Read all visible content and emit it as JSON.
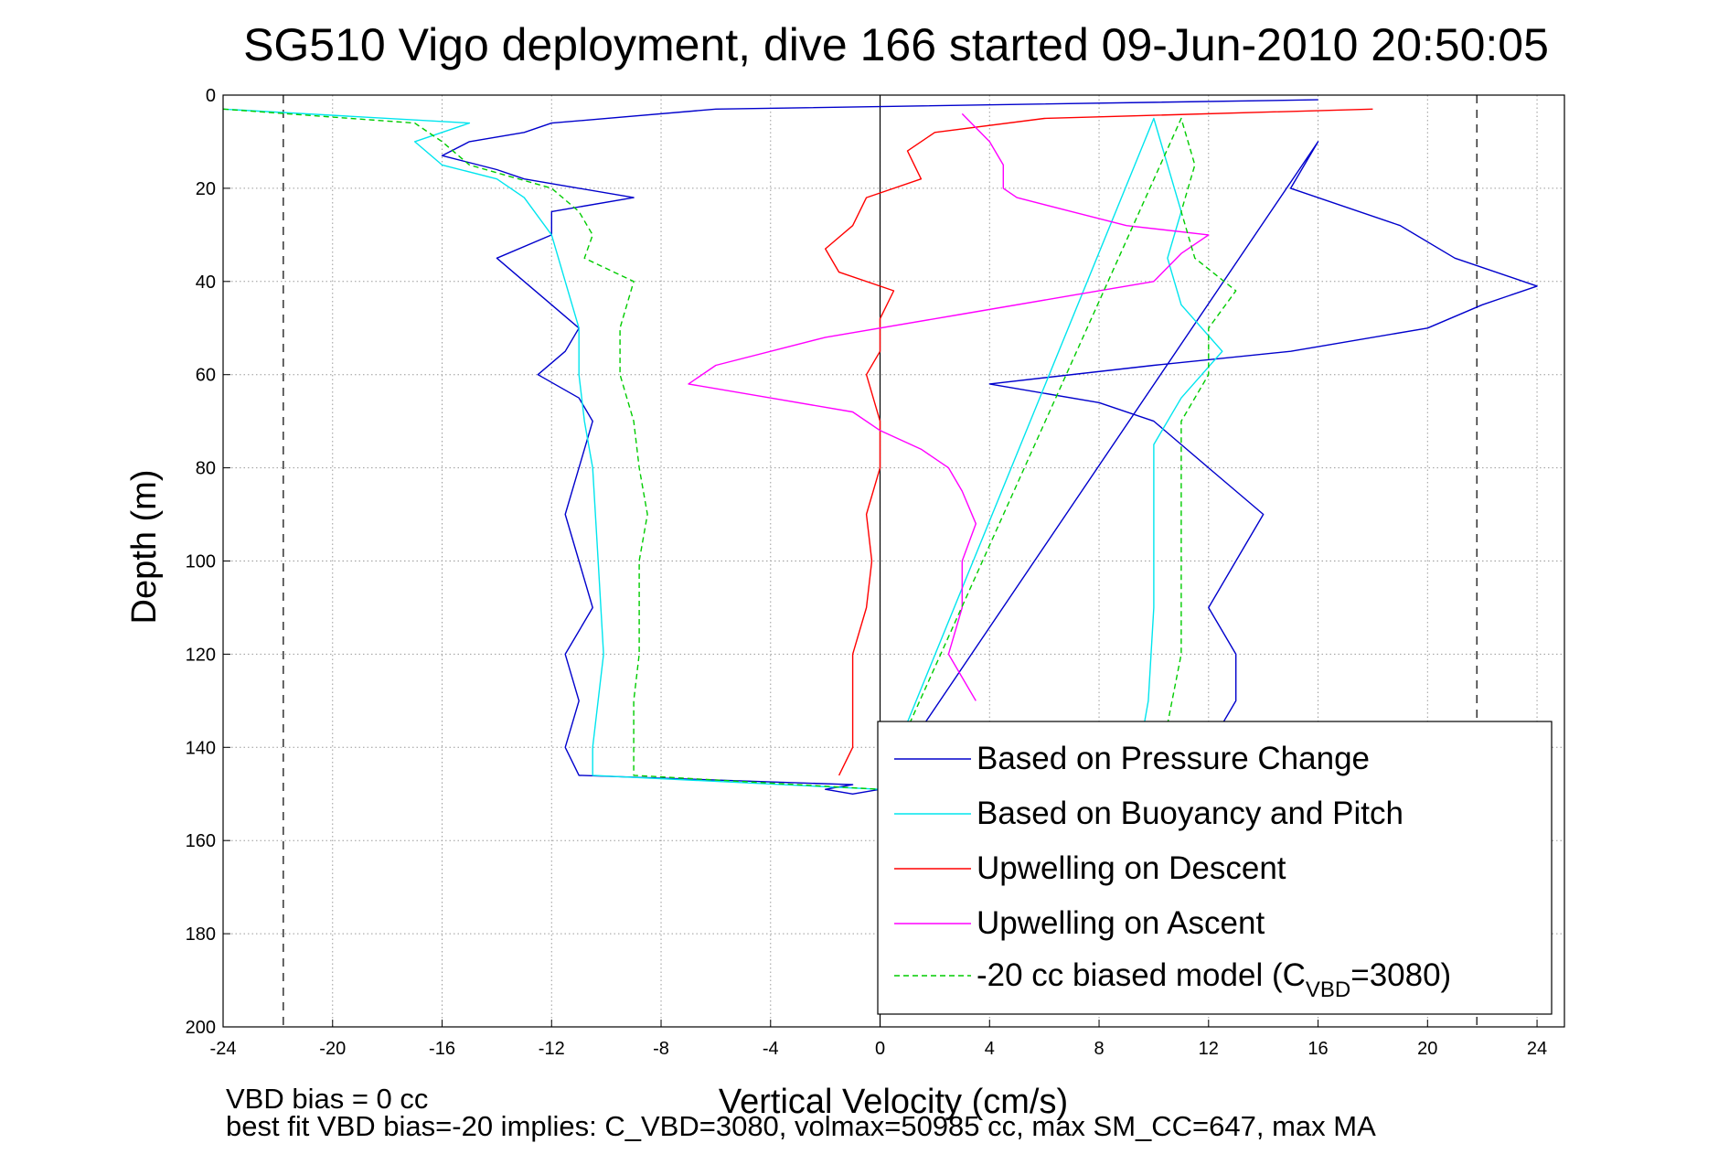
{
  "chart_data": {
    "type": "line",
    "title": "SG510 Vigo deployment, dive 166 started 09-Jun-2010 20:50:05",
    "xlabel": "Vertical Velocity (cm/s)",
    "ylabel": "Depth (m)",
    "xlim": [
      -24,
      25
    ],
    "ylim": [
      0,
      200
    ],
    "y_reversed": true,
    "grid": true,
    "legend_position": "bottom-right",
    "xticks": [
      "-24",
      "-20",
      "-16",
      "-12",
      "-8",
      "-4",
      "0",
      "4",
      "8",
      "12",
      "16",
      "20",
      "24"
    ],
    "yticks": [
      "0",
      "20",
      "40",
      "60",
      "80",
      "100",
      "120",
      "140",
      "160",
      "180",
      "200"
    ],
    "reference_lines": {
      "x_solid": [
        0
      ],
      "x_dashed": [
        -21.8,
        21.8
      ]
    },
    "series": [
      {
        "name": "Based on Pressure Change",
        "color": "#0000cc",
        "style": "solid",
        "points": [
          [
            16,
            1
          ],
          [
            -6,
            3
          ],
          [
            -12,
            6
          ],
          [
            -13,
            8
          ],
          [
            -15,
            10
          ],
          [
            -16,
            13
          ],
          [
            -14,
            16
          ],
          [
            -13,
            18
          ],
          [
            -11,
            20
          ],
          [
            -9,
            22
          ],
          [
            -12,
            25
          ],
          [
            -12,
            30
          ],
          [
            -14,
            35
          ],
          [
            -13,
            40
          ],
          [
            -12,
            45
          ],
          [
            -11,
            50
          ],
          [
            -11.5,
            55
          ],
          [
            -12.5,
            60
          ],
          [
            -11,
            65
          ],
          [
            -10.5,
            70
          ],
          [
            -11,
            80
          ],
          [
            -11.5,
            90
          ],
          [
            -11,
            100
          ],
          [
            -10.5,
            110
          ],
          [
            -11.5,
            120
          ],
          [
            -11,
            130
          ],
          [
            -11.5,
            140
          ],
          [
            -11,
            146
          ],
          [
            -1,
            148
          ],
          [
            -2,
            149
          ],
          [
            -1,
            150
          ],
          [
            0,
            149
          ],
          [
            16,
            10
          ],
          [
            15,
            20
          ],
          [
            19,
            28
          ],
          [
            21,
            35
          ],
          [
            24,
            41
          ],
          [
            22,
            45
          ],
          [
            20,
            50
          ],
          [
            15,
            55
          ],
          [
            10,
            58
          ],
          [
            4,
            62
          ],
          [
            8,
            66
          ],
          [
            10,
            70
          ],
          [
            12,
            80
          ],
          [
            14,
            90
          ],
          [
            13,
            100
          ],
          [
            12,
            110
          ],
          [
            13,
            120
          ],
          [
            13,
            130
          ],
          [
            12,
            140
          ]
        ]
      },
      {
        "name": "Based on Buoyancy and Pitch",
        "color": "#00e5ee",
        "style": "solid",
        "points": [
          [
            -24,
            3
          ],
          [
            -15,
            6
          ],
          [
            -17,
            10
          ],
          [
            -16,
            15
          ],
          [
            -14,
            18
          ],
          [
            -13,
            22
          ],
          [
            -12,
            30
          ],
          [
            -11.5,
            40
          ],
          [
            -11,
            50
          ],
          [
            -11,
            60
          ],
          [
            -10.8,
            70
          ],
          [
            -10.5,
            80
          ],
          [
            -10.3,
            100
          ],
          [
            -10.1,
            120
          ],
          [
            -10.5,
            140
          ],
          [
            -10.5,
            146
          ],
          [
            0,
            149
          ],
          [
            10,
            5
          ],
          [
            10.5,
            15
          ],
          [
            11,
            25
          ],
          [
            10.5,
            35
          ],
          [
            11,
            45
          ],
          [
            12.5,
            55
          ],
          [
            11,
            65
          ],
          [
            10,
            75
          ],
          [
            10,
            90
          ],
          [
            10,
            110
          ],
          [
            9.8,
            130
          ],
          [
            9.5,
            140
          ]
        ]
      },
      {
        "name": "Upwelling on Descent",
        "color": "#ff0000",
        "style": "solid",
        "points": [
          [
            18,
            3
          ],
          [
            6,
            5
          ],
          [
            2,
            8
          ],
          [
            1,
            12
          ],
          [
            1.5,
            18
          ],
          [
            -0.5,
            22
          ],
          [
            -1,
            28
          ],
          [
            -2,
            33
          ],
          [
            -1.5,
            38
          ],
          [
            0.5,
            42
          ],
          [
            0,
            48
          ],
          [
            0,
            55
          ],
          [
            -0.5,
            60
          ],
          [
            0,
            70
          ],
          [
            0,
            80
          ],
          [
            -0.5,
            90
          ],
          [
            -0.3,
            100
          ],
          [
            -0.5,
            110
          ],
          [
            -1,
            120
          ],
          [
            -1,
            130
          ],
          [
            -1,
            140
          ],
          [
            -1.5,
            146
          ]
        ]
      },
      {
        "name": "Upwelling on Ascent",
        "color": "#ff00ff",
        "style": "solid",
        "points": [
          [
            3,
            4
          ],
          [
            4,
            10
          ],
          [
            4.5,
            15
          ],
          [
            4.5,
            20
          ],
          [
            5,
            22
          ],
          [
            7,
            25
          ],
          [
            9,
            28
          ],
          [
            12,
            30
          ],
          [
            11,
            34
          ],
          [
            10,
            40
          ],
          [
            7,
            43
          ],
          [
            3,
            47
          ],
          [
            -2,
            52
          ],
          [
            -6,
            58
          ],
          [
            -7,
            62
          ],
          [
            -4,
            65
          ],
          [
            -1,
            68
          ],
          [
            0,
            72
          ],
          [
            1.5,
            76
          ],
          [
            2.5,
            80
          ],
          [
            3,
            85
          ],
          [
            3.5,
            92
          ],
          [
            3,
            100
          ],
          [
            3,
            110
          ],
          [
            2.5,
            120
          ],
          [
            3.5,
            130
          ]
        ]
      },
      {
        "name": "-20 cc biased model (C_VBD=3080)",
        "color": "#00cc00",
        "style": "dashed",
        "points": [
          [
            -24,
            3
          ],
          [
            -17,
            6
          ],
          [
            -16,
            10
          ],
          [
            -15,
            15
          ],
          [
            -12,
            20
          ],
          [
            -11,
            25
          ],
          [
            -10.5,
            30
          ],
          [
            -10.8,
            35
          ],
          [
            -9,
            40
          ],
          [
            -9.5,
            50
          ],
          [
            -9.5,
            60
          ],
          [
            -9,
            70
          ],
          [
            -8.8,
            80
          ],
          [
            -8.5,
            90
          ],
          [
            -8.8,
            100
          ],
          [
            -8.8,
            110
          ],
          [
            -8.8,
            120
          ],
          [
            -9,
            130
          ],
          [
            -9,
            140
          ],
          [
            -9,
            146
          ],
          [
            0,
            149
          ],
          [
            11,
            5
          ],
          [
            11.5,
            15
          ],
          [
            11,
            25
          ],
          [
            11.5,
            35
          ],
          [
            13,
            42
          ],
          [
            12,
            50
          ],
          [
            12,
            60
          ],
          [
            11,
            70
          ],
          [
            11,
            80
          ],
          [
            11,
            100
          ],
          [
            11,
            120
          ],
          [
            10.5,
            135
          ]
        ]
      }
    ],
    "legend_entries": [
      {
        "text": "Based on Pressure Change",
        "color": "#0000cc",
        "style": "solid"
      },
      {
        "text": "Based on Buoyancy and Pitch",
        "color": "#00e5ee",
        "style": "solid"
      },
      {
        "text": "Upwelling on Descent",
        "color": "#ff0000",
        "style": "solid"
      },
      {
        "text": "Upwelling on Ascent",
        "color": "#ff00ff",
        "style": "solid"
      },
      {
        "text": "-20 cc biased model (C",
        "sub": "VBD",
        "tail": "=3080)",
        "color": "#00cc00",
        "style": "dashed"
      }
    ]
  },
  "footer": {
    "line1": "VBD bias = 0 cc",
    "line2": "best fit VBD bias=-20 implies: C_VBD=3080, volmax=50985 cc, max SM_CC=647, max MA"
  }
}
